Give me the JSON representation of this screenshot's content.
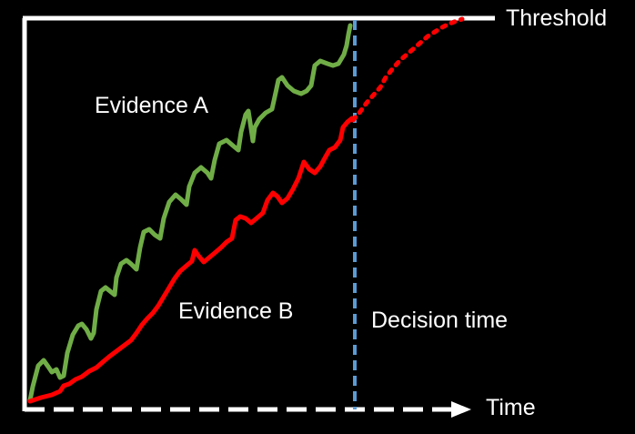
{
  "labels": {
    "threshold": "Threshold",
    "evidence_a": "Evidence A",
    "evidence_b": "Evidence B",
    "decision_time": "Decision time",
    "time": "Time"
  },
  "colors": {
    "background": "#000000",
    "frame": "#ffffff",
    "evidence_a": "#70ad47",
    "evidence_b": "#ff0000",
    "decision_line": "#5b9bd5",
    "text": "#ffffff"
  },
  "chart_data": {
    "type": "line",
    "description_series": [
      {
        "name": "Evidence A",
        "style": "solid",
        "trend": "accumulates to threshold"
      },
      {
        "name": "Evidence B",
        "style": "solid then dotted after decision"
      }
    ],
    "xlabel": "Time",
    "threshold_label": "Threshold",
    "marker_label": "Decision time"
  }
}
